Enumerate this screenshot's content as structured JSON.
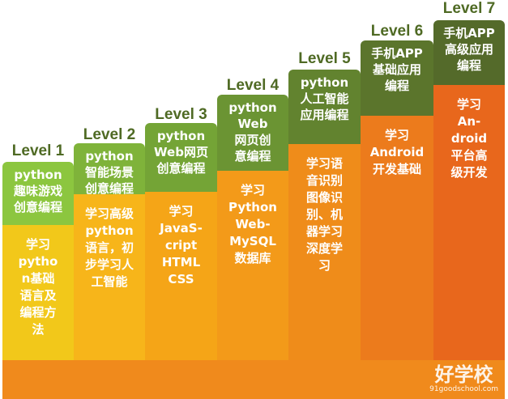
{
  "levels": [
    {
      "level": "Level 1",
      "header": [
        "python",
        "趣味游戏",
        "创意编程"
      ],
      "body": [
        "学习",
        "pytho",
        "n基础",
        "语言及",
        "编程方",
        "法"
      ]
    },
    {
      "level": "Level 2",
      "header": [
        "python",
        "智能场景",
        "创意编程"
      ],
      "body": [
        "学习高级",
        "python",
        "语言，初",
        "步学习人",
        "工智能"
      ]
    },
    {
      "level": "Level 3",
      "header": [
        "python",
        "Web网页",
        "创意编程"
      ],
      "body": [
        "学习",
        "JavaS-",
        "cript",
        "HTML",
        "CSS"
      ]
    },
    {
      "level": "Level 4",
      "header": [
        "python",
        "Web",
        "网页创",
        "意编程"
      ],
      "body": [
        "学习",
        "Python",
        "Web-",
        "MySQL",
        "数据库"
      ]
    },
    {
      "level": "Level 5",
      "header": [
        "python",
        "人工智能",
        "应用编程"
      ],
      "body": [
        "学习语",
        "音识别",
        "图像识",
        "别、机",
        "器学习",
        "深度学",
        "习"
      ]
    },
    {
      "level": "Level 6",
      "header": [
        "手机APP",
        "基础应用",
        "编程"
      ],
      "body": [
        "学习",
        "Android",
        "开发基础"
      ]
    },
    {
      "level": "Level 7",
      "header": [
        "手机APP",
        "高级应用",
        "编程"
      ],
      "body": [
        "学习",
        "An-",
        "droid",
        "平台高",
        "级开发"
      ]
    }
  ],
  "watermark": {
    "brand": "好学校",
    "url": "91goodschool.com"
  }
}
